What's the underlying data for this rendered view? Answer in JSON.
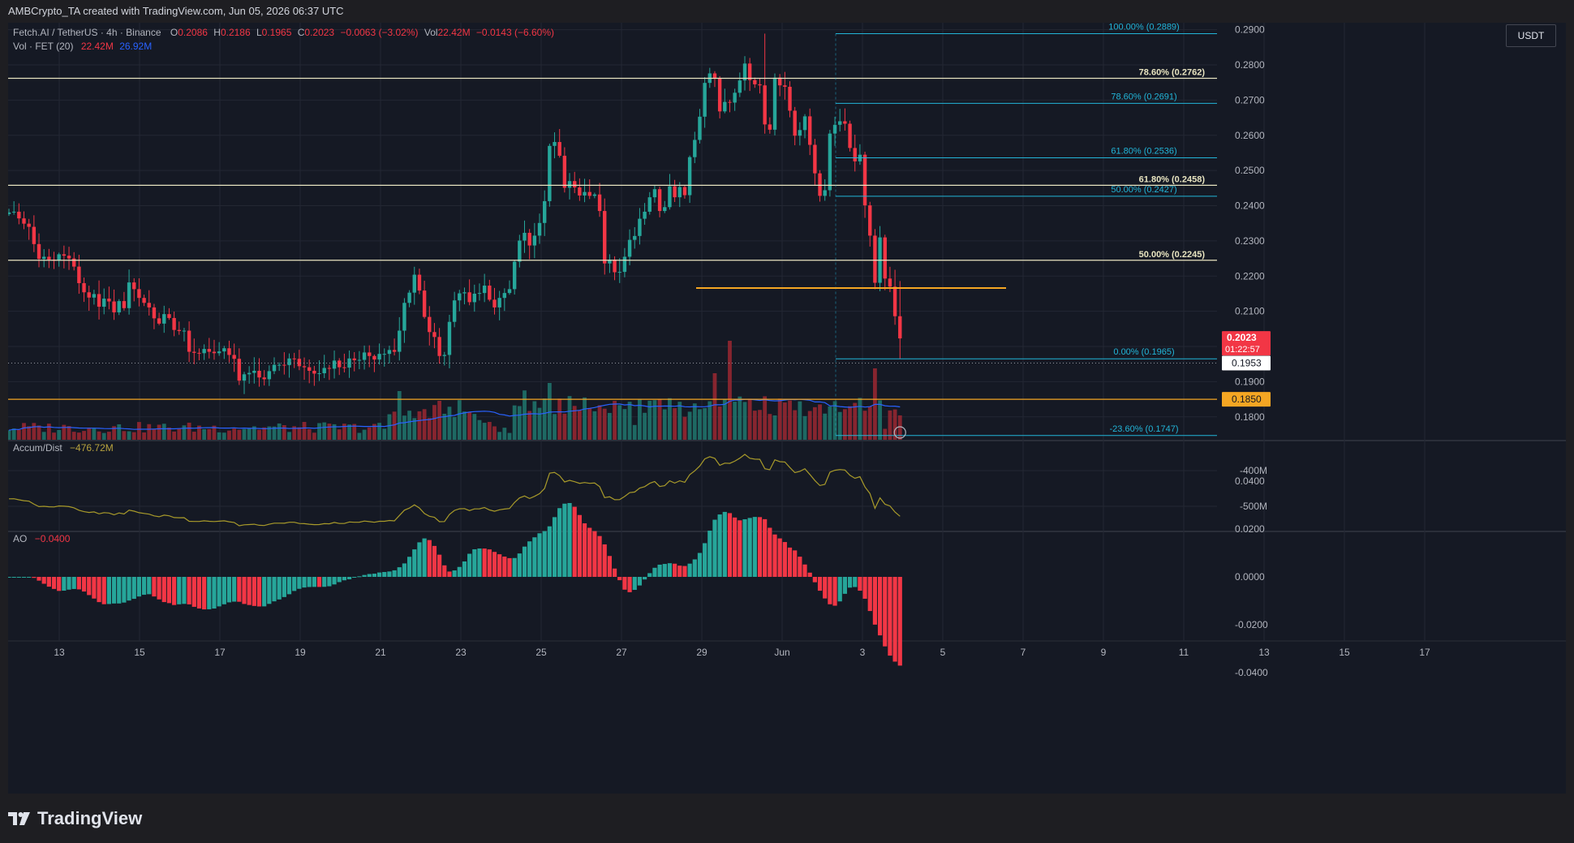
{
  "caption": "AMBCrypto_TA created with TradingView.com, Jun 05, 2026 06:37 UTC",
  "brand": "TradingView",
  "currency": "USDT",
  "legend": {
    "symbol": "Fetch.AI / TetherUS · 4h · Binance",
    "o_label": "O",
    "o": "0.2086",
    "h_label": "H",
    "h": "0.2186",
    "l_label": "L",
    "l": "0.1965",
    "c_label": "C",
    "c": "0.2023",
    "change": "−0.0063 (−3.02%)",
    "vol_label": "Vol",
    "vol": "22.42M",
    "vol_change": "−0.0143 (−6.60%)",
    "vol_ma_label": "Vol · FET (20)",
    "vol_ma_1": "22.42M",
    "vol_ma_2": "26.92M",
    "ad_label": "Accum/Dist",
    "ad_value": "−476.72M",
    "ao_label": "AO",
    "ao_value": "−0.0400"
  },
  "price_tags": {
    "last_price": "0.2023",
    "countdown": "01:22:57",
    "dotted_level": "0.1953",
    "orange_level": "0.1850"
  },
  "colors": {
    "bull": "#26a69a",
    "bear": "#f23645",
    "fib_cyan": "#22b5d8",
    "fib_white": "#e8e4c0",
    "orange": "#f5a623",
    "ma_blue": "#2962ff",
    "ad_line": "#a89a2a"
  },
  "chart_data": [
    {
      "type": "candlestick",
      "title": "Fetch.AI / TetherUS · 4h · Binance",
      "timeframe": "4h",
      "x_ticks": [
        "13",
        "15",
        "17",
        "19",
        "21",
        "23",
        "25",
        "27",
        "29",
        "Jun",
        "3",
        "5",
        "7",
        "9",
        "11",
        "13",
        "15",
        "17"
      ],
      "y_ticks": [
        "0.2900",
        "0.2800",
        "0.2700",
        "0.2600",
        "0.2500",
        "0.2400",
        "0.2300",
        "0.2200",
        "0.2100",
        "0.2000",
        "0.1900",
        "0.1800"
      ],
      "ylim": [
        0.1735,
        0.292
      ],
      "close_series": [
        0.2381,
        0.2383,
        0.2364,
        0.2349,
        0.234,
        0.2291,
        0.2249,
        0.2255,
        0.2247,
        0.2244,
        0.2262,
        0.2258,
        0.225,
        0.2227,
        0.218,
        0.2154,
        0.2139,
        0.2149,
        0.2113,
        0.2136,
        0.2128,
        0.2097,
        0.2129,
        0.2109,
        0.2182,
        0.2163,
        0.2138,
        0.2124,
        0.2111,
        0.208,
        0.2065,
        0.2092,
        0.2081,
        0.2047,
        0.2044,
        0.2045,
        0.1985,
        0.1982,
        0.1981,
        0.1993,
        0.1985,
        0.1981,
        0.1986,
        0.1995,
        0.1976,
        0.1965,
        0.1903,
        0.1921,
        0.1925,
        0.1931,
        0.1912,
        0.1907,
        0.193,
        0.1948,
        0.1948,
        0.1947,
        0.1966,
        0.1965,
        0.1944,
        0.1941,
        0.1931,
        0.1923,
        0.1924,
        0.1939,
        0.1937,
        0.196,
        0.1941,
        0.194,
        0.1966,
        0.1961,
        0.1962,
        0.1983,
        0.1973,
        0.1963,
        0.1979,
        0.1979,
        0.199,
        0.1985,
        0.2045,
        0.2124,
        0.2153,
        0.2204,
        0.2159,
        0.2084,
        0.2041,
        0.2027,
        0.1973,
        0.1976,
        0.207,
        0.2131,
        0.2151,
        0.2154,
        0.2126,
        0.215,
        0.2152,
        0.2173,
        0.2133,
        0.2111,
        0.2138,
        0.2152,
        0.2163,
        0.2241,
        0.2301,
        0.2323,
        0.2287,
        0.2315,
        0.2351,
        0.2413,
        0.257,
        0.2581,
        0.2542,
        0.2451,
        0.247,
        0.2452,
        0.2429,
        0.2439,
        0.2428,
        0.2432,
        0.2385,
        0.2236,
        0.2247,
        0.2211,
        0.2212,
        0.2255,
        0.2303,
        0.2314,
        0.2363,
        0.2383,
        0.2424,
        0.2447,
        0.2385,
        0.2396,
        0.2455,
        0.2424,
        0.2453,
        0.243,
        0.2538,
        0.2587,
        0.2653,
        0.2749,
        0.2776,
        0.2761,
        0.2668,
        0.2695,
        0.2693,
        0.2721,
        0.2756,
        0.2804,
        0.2757,
        0.2745,
        0.2742,
        0.2631,
        0.2616,
        0.2764,
        0.2742,
        0.2738,
        0.267,
        0.2599,
        0.2615,
        0.2654,
        0.2573,
        0.2492,
        0.2428,
        0.2444,
        0.2605,
        0.263,
        0.264,
        0.2633,
        0.2564,
        0.2526,
        0.2545,
        0.2401,
        0.2315,
        0.2181,
        0.231,
        0.2193,
        0.217,
        0.2086,
        0.2023
      ],
      "volume_ma": "Vol · FET (20)"
    },
    {
      "type": "line",
      "title": "Accum/Dist",
      "y_ticks": [
        "-400M",
        "-500M"
      ],
      "last_value": "−476.72M"
    },
    {
      "type": "bar",
      "title": "AO",
      "y_ticks": [
        "0.0400",
        "0.0200",
        "0.0000",
        "-0.0200",
        "-0.0400"
      ],
      "last_value": "−0.0400"
    }
  ],
  "fib_right_set": [
    {
      "label": "100.00% (0.2889)",
      "value": 0.2889
    },
    {
      "label": "78.60% (0.2691)",
      "value": 0.2691
    },
    {
      "label": "61.80% (0.2536)",
      "value": 0.2536
    },
    {
      "label": "50.00% (0.2427)",
      "value": 0.2427
    },
    {
      "label": "0.00% (0.1965)",
      "value": 0.1965
    },
    {
      "label": "-23.60% (0.1747)",
      "value": 0.1747
    }
  ],
  "fib_left_set": [
    {
      "label": "78.60% (0.2762)",
      "value": 0.2762
    },
    {
      "label": "61.80% (0.2458)",
      "value": 0.2458
    },
    {
      "label": "50.00% (0.2245)",
      "value": 0.2245
    }
  ],
  "support_levels": [
    {
      "name": "orange-support",
      "value": 0.2166
    },
    {
      "name": "orange-level",
      "value": 0.185
    },
    {
      "name": "dotted-level",
      "value": 0.1953
    }
  ]
}
